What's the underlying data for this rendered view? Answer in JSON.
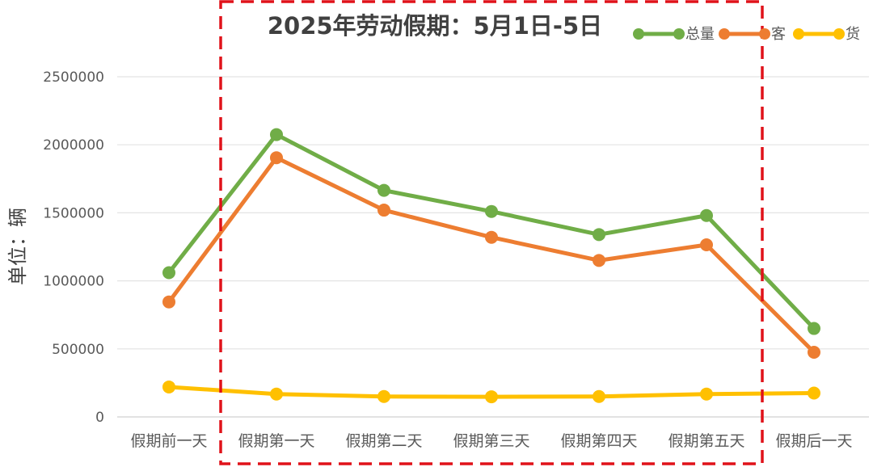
{
  "chart_data": {
    "type": "line",
    "title": "2025年劳动假期：5月1日-5日",
    "xlabel": "",
    "ylabel": "单位：辆",
    "categories": [
      "假期前一天",
      "假期第一天",
      "假期第二天",
      "假期第三天",
      "假期第四天",
      "假期第五天",
      "假期后一天"
    ],
    "ylim": [
      0,
      2500000
    ],
    "yticks": [
      0,
      500000,
      1000000,
      1500000,
      2000000,
      2500000
    ],
    "grid": true,
    "legend_position": "top-right",
    "highlight": {
      "from_category": "假期第一天",
      "to_category": "假期第五天",
      "style": "red-dashed-box"
    },
    "series": [
      {
        "name": "总量",
        "color": "#70AD47",
        "values": [
          1060000,
          2075000,
          1665000,
          1510000,
          1340000,
          1480000,
          650000
        ]
      },
      {
        "name": "客",
        "color": "#ED7D31",
        "values": [
          845000,
          1905000,
          1520000,
          1320000,
          1150000,
          1265000,
          475000
        ]
      },
      {
        "name": "货",
        "color": "#FFC000",
        "values": [
          220000,
          168000,
          150000,
          148000,
          150000,
          168000,
          175000
        ]
      }
    ]
  }
}
